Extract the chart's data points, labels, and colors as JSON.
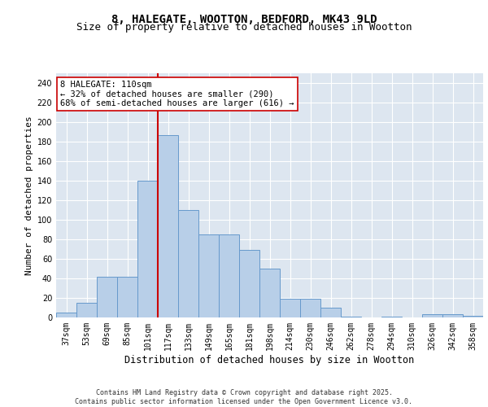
{
  "title1": "8, HALEGATE, WOOTTON, BEDFORD, MK43 9LD",
  "title2": "Size of property relative to detached houses in Wootton",
  "xlabel": "Distribution of detached houses by size in Wootton",
  "ylabel": "Number of detached properties",
  "categories": [
    "37sqm",
    "53sqm",
    "69sqm",
    "85sqm",
    "101sqm",
    "117sqm",
    "133sqm",
    "149sqm",
    "165sqm",
    "181sqm",
    "198sqm",
    "214sqm",
    "230sqm",
    "246sqm",
    "262sqm",
    "278sqm",
    "294sqm",
    "310sqm",
    "326sqm",
    "342sqm",
    "358sqm"
  ],
  "values": [
    5,
    15,
    42,
    42,
    140,
    187,
    110,
    85,
    85,
    69,
    50,
    19,
    19,
    10,
    1,
    0,
    1,
    0,
    3,
    3,
    2
  ],
  "bar_color": "#b8cfe8",
  "bar_edge_color": "#6699cc",
  "vline_x_idx": 4.5,
  "vline_color": "#cc0000",
  "annotation_text": "8 HALEGATE: 110sqm\n← 32% of detached houses are smaller (290)\n68% of semi-detached houses are larger (616) →",
  "annotation_box_color": "#ffffff",
  "annotation_box_edge": "#cc0000",
  "ylim": [
    0,
    250
  ],
  "yticks": [
    0,
    20,
    40,
    60,
    80,
    100,
    120,
    140,
    160,
    180,
    200,
    220,
    240
  ],
  "background_color": "#dde6f0",
  "grid_color": "#ffffff",
  "footer": "Contains HM Land Registry data © Crown copyright and database right 2025.\nContains public sector information licensed under the Open Government Licence v3.0.",
  "title1_fontsize": 10,
  "title2_fontsize": 9,
  "xlabel_fontsize": 8.5,
  "ylabel_fontsize": 8,
  "tick_fontsize": 7,
  "annotation_fontsize": 7.5,
  "footer_fontsize": 6
}
